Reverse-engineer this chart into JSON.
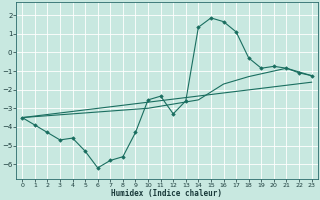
{
  "xlabel": "Humidex (Indice chaleur)",
  "bg_color": "#c8e8e0",
  "grid_color": "#ffffff",
  "line_color": "#1a6e60",
  "xlim": [
    -0.5,
    23.5
  ],
  "ylim": [
    -6.8,
    2.7
  ],
  "xticks": [
    0,
    1,
    2,
    3,
    4,
    5,
    6,
    7,
    8,
    9,
    10,
    11,
    12,
    13,
    14,
    15,
    16,
    17,
    18,
    19,
    20,
    21,
    22,
    23
  ],
  "yticks": [
    -6,
    -5,
    -4,
    -3,
    -2,
    -1,
    0,
    1,
    2
  ],
  "curve_x": [
    0,
    1,
    2,
    3,
    4,
    5,
    6,
    7,
    8,
    9,
    10,
    11,
    12,
    13,
    14,
    15,
    16,
    17,
    18,
    19,
    20,
    21,
    22,
    23
  ],
  "curve_y": [
    -3.5,
    -3.9,
    -4.3,
    -4.7,
    -4.6,
    -5.3,
    -6.2,
    -5.8,
    -5.6,
    -4.3,
    -2.55,
    -2.35,
    -3.3,
    -2.6,
    1.35,
    1.85,
    1.65,
    1.1,
    -0.3,
    -0.85,
    -0.75,
    -0.85,
    -1.1,
    -1.25
  ],
  "line1_x": [
    0,
    23
  ],
  "line1_y": [
    -3.5,
    -1.6
  ],
  "line2_x": [
    0,
    10,
    14,
    16,
    18,
    21,
    23
  ],
  "line2_y": [
    -3.5,
    -3.0,
    -2.55,
    -1.7,
    -1.3,
    -0.85,
    -1.25
  ]
}
